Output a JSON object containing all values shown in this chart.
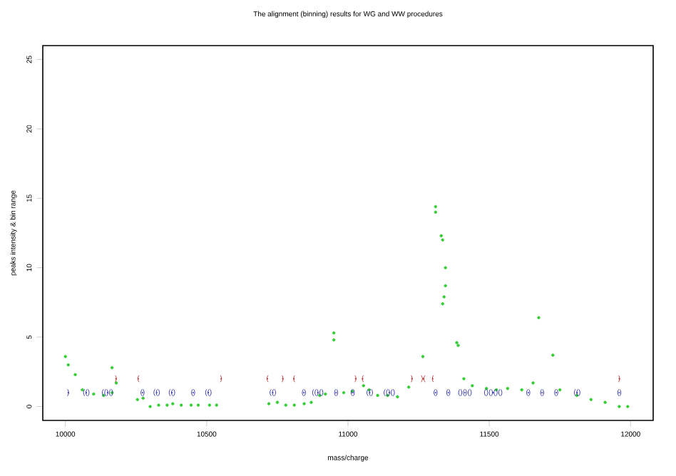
{
  "chart_data": {
    "type": "scatter",
    "title": "The alignment (binning) results for WG and WW procedures",
    "xlabel": "mass/charge",
    "ylabel": "peaks intensity & bin range",
    "xlim": [
      9920,
      12080
    ],
    "ylim": [
      -1,
      26
    ],
    "xticks": [
      10000,
      10500,
      11000,
      11500,
      12000
    ],
    "yticks": [
      0,
      5,
      10,
      15,
      20,
      25
    ],
    "grid": false,
    "series": [
      {
        "color": "#33cc33",
        "marker": "circle",
        "x": [
          10000,
          10010,
          10035,
          10060,
          10100,
          10135,
          10165,
          10165,
          10180,
          10255,
          10275,
          10300,
          10330,
          10360,
          10380,
          10410,
          10445,
          10470,
          10510,
          10535,
          10720,
          10750,
          10780,
          10810,
          10845,
          10870,
          10900,
          10920,
          10950,
          10950,
          10985,
          11015,
          11055,
          11075,
          11105,
          11140,
          11175,
          11215,
          11265,
          11310,
          11310,
          11330,
          11335,
          11345,
          11345,
          11340,
          11335,
          11385,
          11390,
          11410,
          11440,
          11490,
          11525,
          11565,
          11615,
          11655,
          11675,
          11725,
          11750,
          11810,
          11860,
          11910,
          11960,
          11990
        ],
        "values": [
          3.6,
          3.0,
          2.3,
          1.2,
          0.9,
          0.8,
          1.0,
          2.8,
          1.7,
          0.5,
          0.6,
          0.0,
          0.1,
          0.1,
          0.2,
          0.1,
          0.1,
          0.1,
          0.1,
          0.1,
          0.2,
          0.3,
          0.1,
          0.1,
          0.2,
          0.3,
          0.8,
          0.9,
          5.3,
          4.8,
          1.0,
          1.1,
          1.5,
          1.2,
          0.8,
          0.8,
          0.7,
          1.4,
          3.6,
          14.4,
          14.0,
          12.3,
          12.0,
          10.0,
          8.7,
          7.9,
          7.4,
          4.6,
          4.4,
          2.0,
          1.5,
          1.3,
          1.2,
          1.3,
          1.2,
          1.7,
          6.4,
          3.7,
          1.2,
          0.8,
          0.5,
          0.3,
          0.0,
          0.0
        ]
      },
      {
        "color": "#3333aa",
        "marker": "circle",
        "x": [
          10010,
          10074,
          10149,
          10273,
          10323,
          10377,
          10452,
          10506,
          10734,
          10844,
          10893,
          10958,
          11017,
          11077,
          11146,
          11310,
          11355,
          11414,
          11514,
          11638,
          11687,
          11737,
          11811,
          11960
        ],
        "values": [
          1,
          1,
          1,
          1,
          1,
          1,
          1,
          1,
          1,
          1,
          1,
          1,
          1,
          1,
          1,
          1,
          1,
          1,
          1,
          1,
          1,
          1,
          1,
          1
        ],
        "value_labels": [
          ")",
          "(()",
          "(()()",
          "()",
          "(()",
          "(()",
          "()",
          "(()",
          "(()",
          "()",
          "(()()",
          "()",
          "()",
          "(()",
          "(()()",
          "()",
          "()",
          "()()()",
          "()()()()",
          "()",
          "()",
          "()",
          "(()",
          "()"
        ]
      },
      {
        "color": "#bb3333",
        "marker": "circle",
        "x": [
          10179,
          10258,
          10551,
          10715,
          10769,
          10809,
          11027,
          11052,
          11226,
          11266,
          11300,
          11960
        ],
        "values": [
          2,
          2,
          2,
          2,
          2,
          2,
          2,
          2,
          2,
          2,
          2,
          2
        ],
        "value_labels": [
          ")",
          "(",
          ")",
          "(",
          ")",
          "(",
          ")",
          "(",
          ")",
          ")(",
          "(",
          ")"
        ]
      }
    ]
  }
}
